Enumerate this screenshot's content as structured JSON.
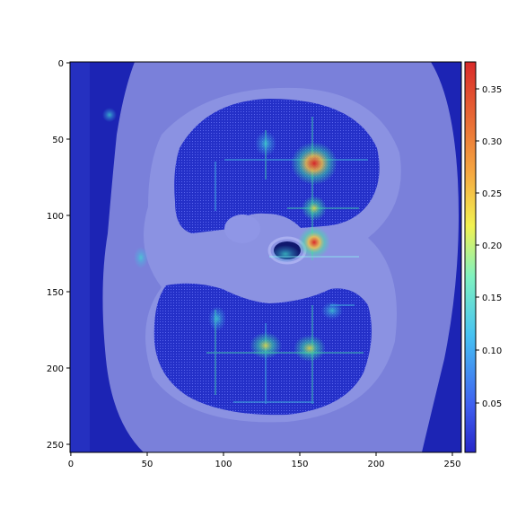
{
  "chart_data": {
    "type": "heatmap",
    "title": "",
    "xlabel": "",
    "ylabel": "",
    "xlim": [
      0,
      256
    ],
    "ylim": [
      256,
      0
    ],
    "x_ticks": [
      "0",
      "50",
      "100",
      "150",
      "200",
      "250"
    ],
    "y_ticks": [
      "0",
      "50",
      "100",
      "150",
      "200",
      "250"
    ],
    "colorbar": {
      "colormap": "jet",
      "range": [
        0.0,
        0.375
      ],
      "ticks": [
        "0.05",
        "0.10",
        "0.15",
        "0.20",
        "0.25",
        "0.30",
        "0.35"
      ]
    },
    "background": "axial CT slice with two lung fields overlaid by a semi-transparent jet attention map",
    "hotspots": [
      {
        "x": 160,
        "y": 66,
        "value": 0.37
      },
      {
        "x": 160,
        "y": 118,
        "value": 0.37
      },
      {
        "x": 160,
        "y": 95,
        "value": 0.22
      },
      {
        "x": 127,
        "y": 185,
        "value": 0.22
      },
      {
        "x": 156,
        "y": 188,
        "value": 0.2
      },
      {
        "x": 126,
        "y": 52,
        "value": 0.18
      },
      {
        "x": 145,
        "y": 125,
        "value": 0.15
      },
      {
        "x": 47,
        "y": 128,
        "value": 0.12
      },
      {
        "x": 95,
        "y": 168,
        "value": 0.14
      },
      {
        "x": 170,
        "y": 160,
        "value": 0.1
      }
    ]
  }
}
